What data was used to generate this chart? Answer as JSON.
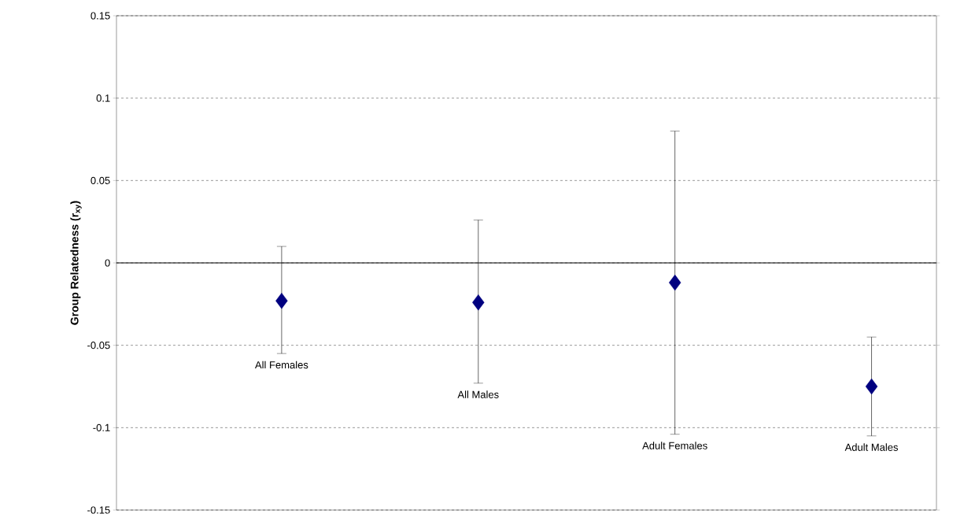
{
  "chart_data": {
    "type": "scatter",
    "ylabel": "Group Relatedness (r$_{xy}$)",
    "categories": [
      "All Females",
      "All Males",
      "Adult Females",
      "Adult Males"
    ],
    "values": [
      -0.023,
      -0.024,
      -0.012,
      -0.075
    ],
    "errors": [
      [
        -0.055,
        0.01
      ],
      [
        -0.073,
        0.026
      ],
      [
        -0.104,
        0.08
      ],
      [
        -0.105,
        -0.045
      ]
    ],
    "color": "#000080",
    "marker": "diamond",
    "ylim": [
      -0.15,
      0.15
    ],
    "yticks": [
      -0.15,
      -0.1,
      -0.05,
      0,
      0.05,
      0.1,
      0.15
    ],
    "grid": "y"
  }
}
